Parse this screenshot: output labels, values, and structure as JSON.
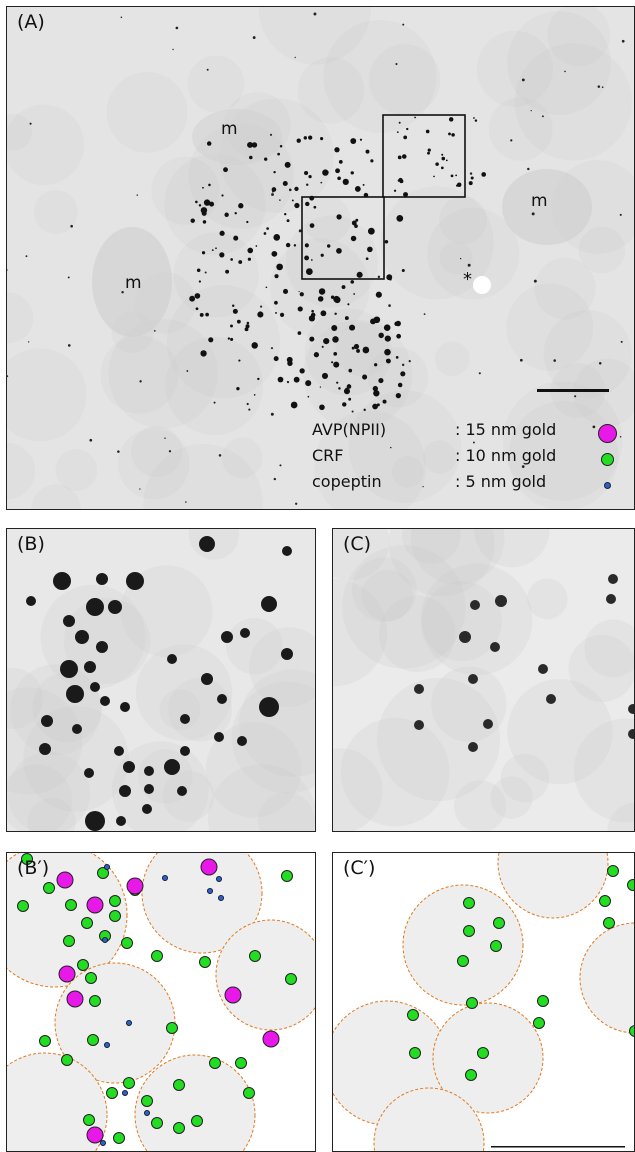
{
  "panels": {
    "A": {
      "label": "(A)"
    },
    "B": {
      "label": "(B)"
    },
    "C": {
      "label": "(C)"
    },
    "B_prime": {
      "label": "(B′)"
    },
    "C_prime": {
      "label": "(C′)"
    }
  },
  "mito_labels": [
    "m",
    "m",
    "m"
  ],
  "asterisk": "*",
  "legend": [
    {
      "name": "AVP(NPII)",
      "size": ": 15 nm gold",
      "color": "#e818e8"
    },
    {
      "name": "CRF",
      "size": ": 10 nm gold",
      "color": "#22dd22"
    },
    {
      "name": "copeptin",
      "size": ":   5 nm gold",
      "color": "#2a5fd0"
    }
  ],
  "colors": {
    "vesicle_fill": "#eeeeee",
    "vesicle_border": "#e07a20",
    "background_grey": "#e6e6e6"
  }
}
